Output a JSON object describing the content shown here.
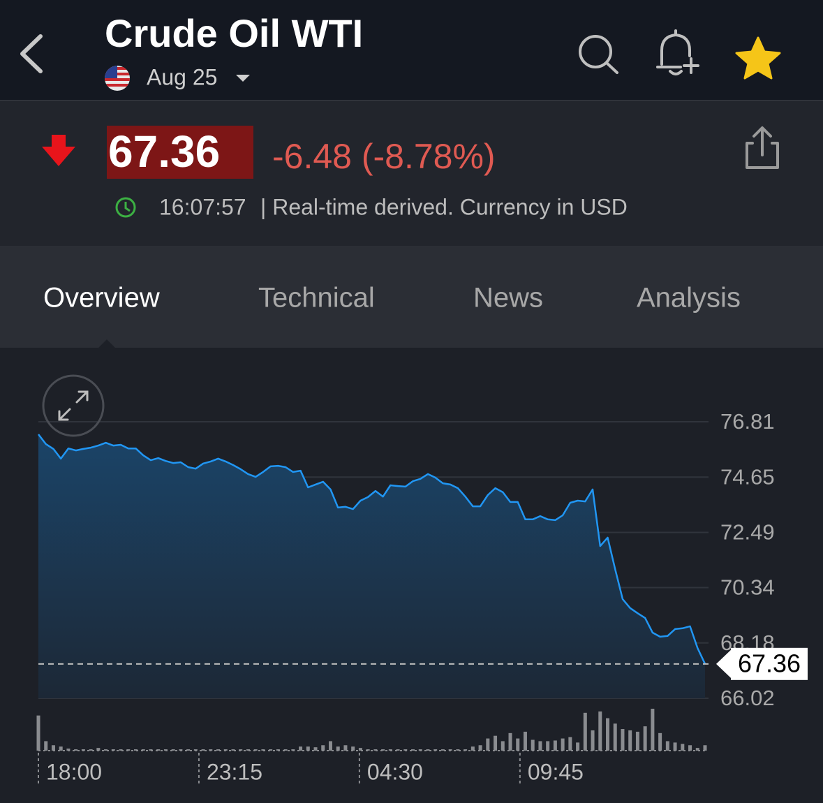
{
  "header": {
    "title": "Crude Oil WTI",
    "contract": "Aug 25"
  },
  "quote": {
    "price": "67.36",
    "change": "-6.48 (-8.78%)",
    "time": "16:07:57",
    "note": "| Real-time derived. Currency in USD"
  },
  "tabs": [
    "Overview",
    "Technical",
    "News",
    "Analysis"
  ],
  "chart_data": {
    "type": "area",
    "x": [
      0,
      1,
      2,
      3,
      4,
      5,
      6,
      7,
      8,
      9,
      10,
      11,
      12,
      13,
      14,
      15,
      16,
      17,
      18,
      19,
      20,
      21,
      22,
      23,
      24,
      25,
      26,
      27,
      28,
      29,
      30,
      31,
      32,
      33,
      34,
      35,
      36,
      37,
      38,
      39,
      40,
      41,
      42,
      43,
      44,
      45,
      46,
      47,
      48,
      49,
      50,
      51,
      52,
      53,
      54,
      55,
      56,
      57,
      58,
      59,
      60,
      61,
      62,
      63,
      64,
      65,
      66,
      67,
      68,
      69,
      70,
      71,
      72,
      73,
      74,
      75,
      76,
      77,
      78,
      79,
      80,
      81,
      82,
      83,
      84,
      85,
      86,
      87,
      88,
      89
    ],
    "values": [
      76.32,
      75.94,
      75.75,
      75.37,
      75.77,
      75.69,
      75.75,
      75.8,
      75.88,
      75.99,
      75.88,
      75.91,
      75.77,
      75.77,
      75.5,
      75.31,
      75.39,
      75.28,
      75.2,
      75.23,
      75.04,
      74.98,
      75.18,
      75.26,
      75.37,
      75.26,
      75.12,
      74.96,
      74.77,
      74.66,
      74.85,
      75.07,
      75.09,
      75.04,
      74.85,
      74.9,
      74.25,
      74.36,
      74.47,
      74.17,
      73.46,
      73.49,
      73.4,
      73.73,
      73.87,
      74.11,
      73.89,
      74.33,
      74.3,
      74.28,
      74.49,
      74.58,
      74.77,
      74.63,
      74.41,
      74.36,
      74.22,
      73.89,
      73.51,
      73.51,
      73.95,
      74.22,
      74.06,
      73.68,
      73.68,
      73.0,
      73.0,
      73.13,
      73.0,
      72.97,
      73.16,
      73.65,
      73.73,
      73.7,
      74.17,
      71.96,
      72.29,
      71.06,
      69.89,
      69.54,
      69.34,
      69.15,
      68.58,
      68.42,
      68.45,
      68.72,
      68.75,
      68.83,
      67.98,
      67.36
    ],
    "volume": [
      52,
      14,
      8,
      6,
      3,
      2,
      2,
      2,
      4,
      2,
      2,
      2,
      2,
      2,
      2,
      2,
      2,
      2,
      2,
      2,
      2,
      2,
      2,
      2,
      2,
      2,
      2,
      2,
      2,
      2,
      2,
      2,
      2,
      2,
      2,
      6,
      6,
      5,
      8,
      14,
      6,
      8,
      6,
      4,
      2,
      2,
      2,
      2,
      2,
      2,
      2,
      2,
      2,
      2,
      2,
      2,
      2,
      2,
      6,
      8,
      18,
      22,
      14,
      26,
      18,
      28,
      16,
      14,
      14,
      15,
      18,
      20,
      12,
      56,
      30,
      58,
      48,
      40,
      32,
      30,
      28,
      36,
      62,
      26,
      14,
      12,
      10,
      8,
      4,
      8
    ],
    "last_value": 67.36,
    "color": "#2196f3",
    "xlim": [
      0,
      89
    ],
    "xticks": [
      {
        "value": 0,
        "label": "18:00"
      },
      {
        "value": 21.43,
        "label": "23:15"
      },
      {
        "value": 42.86,
        "label": "04:30"
      },
      {
        "value": 64.29,
        "label": "09:45"
      }
    ],
    "ylim": [
      66.02,
      76.81
    ],
    "yticks": [
      76.81,
      74.65,
      72.49,
      70.34,
      68.18,
      66.02
    ],
    "grid": true
  }
}
